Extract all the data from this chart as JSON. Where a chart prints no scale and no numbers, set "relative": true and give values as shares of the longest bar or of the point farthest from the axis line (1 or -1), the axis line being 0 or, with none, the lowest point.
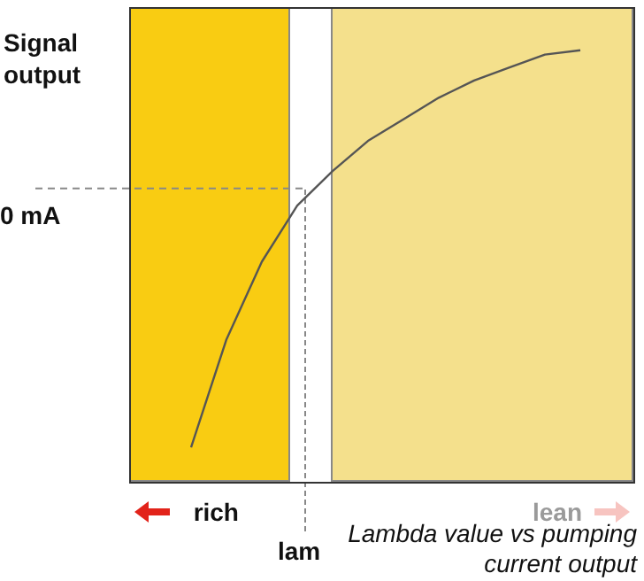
{
  "chart_data": {
    "type": "line",
    "relative": true,
    "ylabel": "Signal output",
    "categories": [
      null,
      null,
      null,
      null,
      null,
      null,
      null,
      null,
      null,
      null,
      null,
      null
    ],
    "series": [
      {
        "color": "#555555",
        "values": [
          0.08,
          0.33,
          0.51,
          0.64,
          0.72,
          0.79,
          0.84,
          0.89,
          0.93,
          0.96,
          0.99,
          1
        ]
      }
    ],
    "ref_lines": [
      {
        "axis": "y",
        "value": 0.68,
        "label": "0 mA",
        "line_style": "dashed"
      }
    ],
    "annotations": [
      "rich",
      "lean",
      "lam",
      "Lambda value vs pumping current output"
    ]
  }
}
